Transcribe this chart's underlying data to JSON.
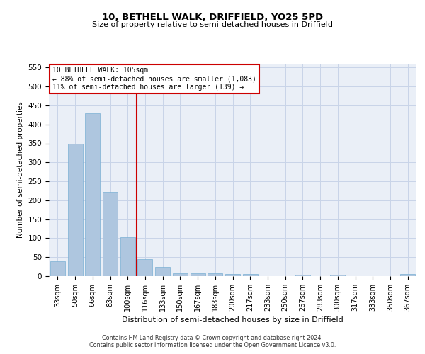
{
  "title": "10, BETHELL WALK, DRIFFIELD, YO25 5PD",
  "subtitle": "Size of property relative to semi-detached houses in Driffield",
  "xlabel": "Distribution of semi-detached houses by size in Driffield",
  "ylabel": "Number of semi-detached properties",
  "categories": [
    "33sqm",
    "50sqm",
    "66sqm",
    "83sqm",
    "100sqm",
    "116sqm",
    "133sqm",
    "150sqm",
    "167sqm",
    "183sqm",
    "200sqm",
    "217sqm",
    "233sqm",
    "250sqm",
    "267sqm",
    "283sqm",
    "300sqm",
    "317sqm",
    "333sqm",
    "350sqm",
    "367sqm"
  ],
  "values": [
    40,
    350,
    430,
    223,
    103,
    44,
    25,
    8,
    8,
    7,
    6,
    5,
    0,
    0,
    4,
    0,
    4,
    0,
    0,
    0,
    5
  ],
  "bar_color": "#aec6df",
  "bar_edge_color": "#7aafd4",
  "property_line_x": 4.5,
  "annotation_text_line1": "10 BETHELL WALK: 105sqm",
  "annotation_text_line2": "← 88% of semi-detached houses are smaller (1,083)",
  "annotation_text_line3": "11% of semi-detached houses are larger (139) →",
  "property_line_color": "#cc0000",
  "annotation_box_color": "#ffffff",
  "annotation_box_edge": "#cc0000",
  "grid_color": "#c8d4e8",
  "background_color": "#eaeff7",
  "ylim": [
    0,
    560
  ],
  "yticks": [
    0,
    50,
    100,
    150,
    200,
    250,
    300,
    350,
    400,
    450,
    500,
    550
  ],
  "footer_line1": "Contains HM Land Registry data © Crown copyright and database right 2024.",
  "footer_line2": "Contains public sector information licensed under the Open Government Licence v3.0."
}
